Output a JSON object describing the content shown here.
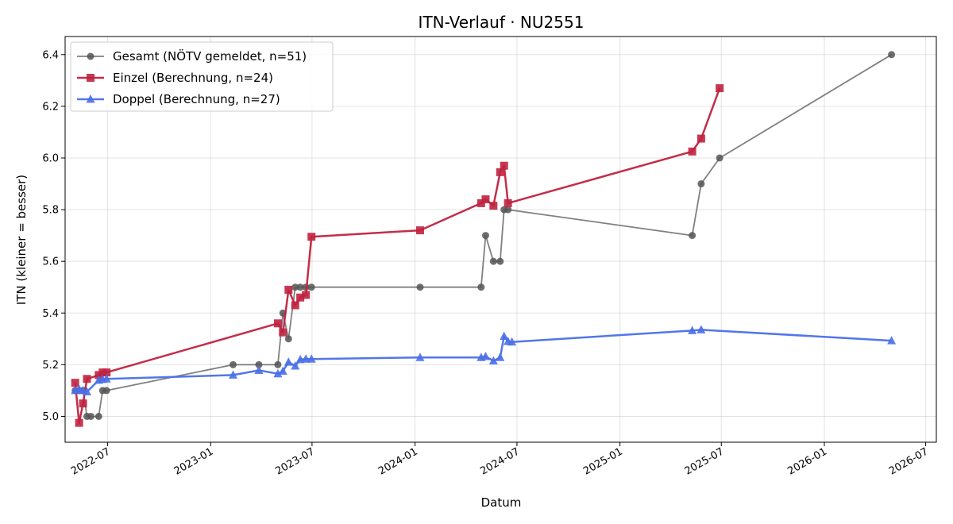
{
  "chart_data": {
    "type": "line",
    "title": "ITN-Verlauf · NU2551",
    "xlabel": "Datum",
    "ylabel": "ITN  (kleiner = besser)",
    "x_type": "date",
    "xlim": [
      "2022-04-16",
      "2026-07-20"
    ],
    "ylim": [
      4.9,
      6.47
    ],
    "x_ticks": [
      "2022-07-01",
      "2023-01-01",
      "2023-07-01",
      "2024-01-01",
      "2024-07-01",
      "2025-01-01",
      "2025-07-01",
      "2026-01-01",
      "2026-07-01"
    ],
    "x_tick_labels": [
      "2022-07",
      "2023-01",
      "2023-07",
      "2024-01",
      "2024-07",
      "2025-01",
      "2025-07",
      "2026-01",
      "2026-07"
    ],
    "y_ticks": [
      5.0,
      5.2,
      5.4,
      5.6,
      5.8,
      6.0,
      6.2,
      6.4
    ],
    "y_tick_labels": [
      "5.0",
      "5.2",
      "5.4",
      "5.6",
      "5.8",
      "6.0",
      "6.2",
      "6.4"
    ],
    "grid": true,
    "legend_position": "top-left",
    "series": [
      {
        "name": "Gesamt (NÖTV gemeldet, n=51)",
        "color": "#555555",
        "marker": "circle",
        "points": [
          [
            "2022-05-04",
            5.1
          ],
          [
            "2022-05-11",
            5.1
          ],
          [
            "2022-05-18",
            5.1
          ],
          [
            "2022-05-25",
            5.0
          ],
          [
            "2022-06-01",
            5.0
          ],
          [
            "2022-06-15",
            5.0
          ],
          [
            "2022-06-22",
            5.1
          ],
          [
            "2022-06-29",
            5.1
          ],
          [
            "2023-02-10",
            5.2
          ],
          [
            "2023-03-28",
            5.2
          ],
          [
            "2023-05-01",
            5.2
          ],
          [
            "2023-05-10",
            5.4
          ],
          [
            "2023-05-20",
            5.3
          ],
          [
            "2023-06-01",
            5.5
          ],
          [
            "2023-06-10",
            5.5
          ],
          [
            "2023-06-20",
            5.5
          ],
          [
            "2023-06-30",
            5.5
          ],
          [
            "2024-01-10",
            5.5
          ],
          [
            "2024-04-28",
            5.5
          ],
          [
            "2024-05-06",
            5.7
          ],
          [
            "2024-05-20",
            5.6
          ],
          [
            "2024-06-01",
            5.6
          ],
          [
            "2024-06-08",
            5.8
          ],
          [
            "2024-06-15",
            5.8
          ],
          [
            "2025-05-10",
            5.7
          ],
          [
            "2025-05-26",
            5.9
          ],
          [
            "2025-06-28",
            6.0
          ],
          [
            "2026-05-01",
            6.4
          ]
        ]
      },
      {
        "name": "Einzel (Berechnung, n=24)",
        "color": "#c0223f",
        "marker": "square",
        "points": [
          [
            "2022-05-04",
            5.13
          ],
          [
            "2022-05-11",
            4.975
          ],
          [
            "2022-05-18",
            5.05
          ],
          [
            "2022-05-25",
            5.145
          ],
          [
            "2022-06-15",
            5.16
          ],
          [
            "2022-06-22",
            5.17
          ],
          [
            "2022-06-29",
            5.17
          ],
          [
            "2023-05-01",
            5.36
          ],
          [
            "2023-05-10",
            5.325
          ],
          [
            "2023-05-20",
            5.49
          ],
          [
            "2023-06-01",
            5.43
          ],
          [
            "2023-06-10",
            5.46
          ],
          [
            "2023-06-20",
            5.47
          ],
          [
            "2023-06-30",
            5.695
          ],
          [
            "2024-01-10",
            5.72
          ],
          [
            "2024-04-28",
            5.825
          ],
          [
            "2024-05-06",
            5.84
          ],
          [
            "2024-05-20",
            5.815
          ],
          [
            "2024-06-01",
            5.945
          ],
          [
            "2024-06-08",
            5.97
          ],
          [
            "2024-06-15",
            5.825
          ],
          [
            "2025-05-10",
            6.025
          ],
          [
            "2025-05-26",
            6.075
          ],
          [
            "2025-06-28",
            6.27
          ]
        ]
      },
      {
        "name": "Doppel (Berechnung, n=27)",
        "color": "#4a6fe8",
        "marker": "triangle",
        "points": [
          [
            "2022-05-04",
            5.1
          ],
          [
            "2022-05-11",
            5.105
          ],
          [
            "2022-05-18",
            5.1
          ],
          [
            "2022-05-25",
            5.095
          ],
          [
            "2022-06-15",
            5.14
          ],
          [
            "2022-06-22",
            5.143
          ],
          [
            "2022-06-29",
            5.145
          ],
          [
            "2023-02-10",
            5.16
          ],
          [
            "2023-03-28",
            5.178
          ],
          [
            "2023-05-01",
            5.165
          ],
          [
            "2023-05-10",
            5.175
          ],
          [
            "2023-05-20",
            5.21
          ],
          [
            "2023-06-01",
            5.195
          ],
          [
            "2023-06-10",
            5.22
          ],
          [
            "2023-06-20",
            5.222
          ],
          [
            "2023-06-30",
            5.222
          ],
          [
            "2024-01-10",
            5.228
          ],
          [
            "2024-04-28",
            5.228
          ],
          [
            "2024-05-06",
            5.232
          ],
          [
            "2024-05-20",
            5.215
          ],
          [
            "2024-06-01",
            5.228
          ],
          [
            "2024-06-08",
            5.31
          ],
          [
            "2024-06-15",
            5.29
          ],
          [
            "2024-06-22",
            5.288
          ],
          [
            "2025-05-10",
            5.332
          ],
          [
            "2025-05-26",
            5.335
          ],
          [
            "2026-05-01",
            5.293
          ]
        ]
      }
    ]
  }
}
